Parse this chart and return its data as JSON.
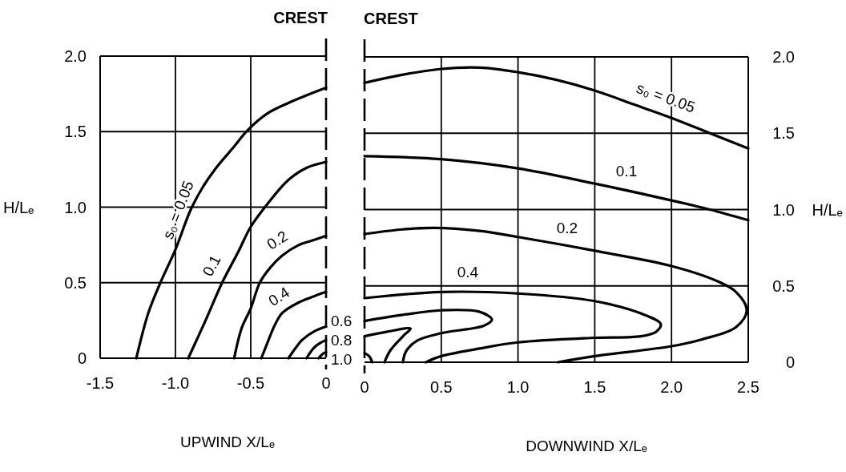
{
  "chart_data": [
    {
      "type": "line",
      "xlabel": "UPWIND X/Lₑ",
      "ylabel": "H/Lₑ",
      "xlim": [
        -1.5,
        0
      ],
      "xticks": [
        -1.5,
        {
          "value": -1,
          "label": "-1.0"
        },
        -0.5,
        0
      ],
      "ylim": [
        0,
        2
      ],
      "yticks": [
        0,
        0.5,
        {
          "value": 1,
          "label": "1.0"
        },
        1.5,
        {
          "value": 2,
          "label": "2.0"
        }
      ],
      "grid": true,
      "ref_lines": [
        {
          "axis": "x",
          "value": 0,
          "label": "CREST",
          "line_style": "dashed"
        }
      ],
      "series": [
        {
          "name": "s₀ = 0.05",
          "color": "#000000",
          "x": [
            -1.26,
            -1.18,
            -1.1,
            -1.0,
            -0.9,
            -0.82,
            -0.73,
            -0.62,
            -0.52,
            -0.39,
            -0.25,
            -0.13,
            0
          ],
          "values": [
            0,
            0.3,
            0.5,
            0.72,
            0.98,
            1.13,
            1.26,
            1.39,
            1.51,
            1.62,
            1.69,
            1.74,
            1.79
          ]
        },
        {
          "name": "0.1",
          "color": "#000000",
          "x": [
            -0.915,
            -0.8,
            -0.69,
            -0.585,
            -0.5,
            -0.39,
            -0.25,
            -0.13,
            0
          ],
          "values": [
            0,
            0.25,
            0.5,
            0.7,
            0.87,
            1.02,
            1.18,
            1.26,
            1.3
          ]
        },
        {
          "name": "0.2",
          "color": "#000000",
          "x": [
            -0.61,
            -0.56,
            -0.5,
            -0.44,
            -0.37,
            -0.29,
            -0.18,
            -0.09,
            0
          ],
          "values": [
            0,
            0.2,
            0.33,
            0.5,
            0.6,
            0.68,
            0.75,
            0.78,
            0.81
          ]
        },
        {
          "name": "0.4",
          "color": "#000000",
          "x": [
            -0.43,
            -0.39,
            -0.34,
            -0.29,
            -0.18,
            -0.08,
            0
          ],
          "values": [
            0,
            0.1,
            0.22,
            0.3,
            0.37,
            0.41,
            0.44
          ]
        },
        {
          "name": "0.6",
          "color": "#000000",
          "x": [
            -0.25,
            -0.2,
            -0.16,
            -0.075,
            0
          ],
          "values": [
            0,
            0.07,
            0.12,
            0.18,
            0.21
          ]
        },
        {
          "name": "0.8",
          "color": "#000000",
          "x": [
            -0.13,
            -0.08,
            -0.04,
            0
          ],
          "values": [
            0,
            0.07,
            0.1,
            0.12
          ]
        },
        {
          "name": "1.0",
          "color": "#000000",
          "x": [
            -0.05,
            -0.02,
            0
          ],
          "values": [
            0,
            0.03,
            0.04
          ]
        }
      ]
    },
    {
      "type": "line",
      "xlabel": "DOWNWIND X/Lₑ",
      "y2label": "H/Lₑ",
      "xlim": [
        0,
        2.5
      ],
      "xticks": [
        0,
        0.5,
        {
          "value": 1,
          "label": "1.0"
        },
        1.5,
        {
          "value": 2,
          "label": "2.0"
        },
        2.5
      ],
      "y2lim": [
        0,
        2
      ],
      "y2ticks": [
        0,
        0.5,
        {
          "value": 1,
          "label": "1.0"
        },
        1.5,
        {
          "value": 2,
          "label": "2.0"
        }
      ],
      "grid": true,
      "ref_lines": [
        {
          "axis": "x",
          "value": 0,
          "label": "CREST",
          "line_style": "dashed"
        }
      ],
      "series": [
        {
          "name": "s₀ = 0.05",
          "color": "#000000",
          "axis": "y2",
          "x": [
            0,
            0.23,
            0.49,
            0.75,
            1.0,
            1.25,
            1.5,
            1.75,
            2.0,
            2.25,
            2.5
          ],
          "values": [
            1.83,
            1.88,
            1.92,
            1.93,
            1.9,
            1.85,
            1.78,
            1.69,
            1.6,
            1.5,
            1.4
          ]
        },
        {
          "name": "0.1",
          "color": "#000000",
          "axis": "y2",
          "x": [
            0,
            0.5,
            1.0,
            1.5,
            2.0,
            2.25,
            2.5
          ],
          "values": [
            1.35,
            1.33,
            1.27,
            1.17,
            1.06,
            1.0,
            0.93
          ]
        },
        {
          "name": "0.2",
          "color": "#000000",
          "axis": "y2",
          "x": [
            0,
            0.25,
            0.45,
            0.75,
            1.0,
            1.5,
            2.0,
            2.3,
            2.42,
            2.49,
            2.42,
            2.2,
            2.0,
            1.5,
            1.26
          ],
          "values": [
            0.84,
            0.87,
            0.88,
            0.86,
            0.82,
            0.73,
            0.63,
            0.53,
            0.46,
            0.34,
            0.23,
            0.15,
            0.105,
            0.04,
            0
          ]
        },
        {
          "name": "0.4",
          "color": "#000000",
          "axis": "y2",
          "x": [
            0,
            0.5,
            1.0,
            1.5,
            1.8,
            1.93,
            1.9,
            1.8,
            1.5,
            1.0,
            0.75,
            0.5,
            0.4
          ],
          "values": [
            0.42,
            0.46,
            0.45,
            0.4,
            0.32,
            0.25,
            0.2,
            0.17,
            0.16,
            0.13,
            0.09,
            0.04,
            0
          ]
        },
        {
          "color": "#000000",
          "axis": "y2",
          "x": [
            0,
            0.25,
            0.5,
            0.75,
            0.83,
            0.78,
            0.5,
            0.34,
            0.27,
            0.25
          ],
          "values": [
            0.27,
            0.31,
            0.34,
            0.33,
            0.28,
            0.24,
            0.19,
            0.14,
            0.07,
            0
          ]
        },
        {
          "color": "#000000",
          "axis": "y2",
          "x": [
            0,
            0.15,
            0.3,
            0.26,
            0.17,
            0.13
          ],
          "values": [
            0.17,
            0.2,
            0.22,
            0.18,
            0.08,
            0
          ]
        },
        {
          "color": "#000000",
          "axis": "y2",
          "x": [
            0,
            0.03,
            0.05
          ],
          "values": [
            0.06,
            0.04,
            0
          ]
        }
      ]
    }
  ]
}
